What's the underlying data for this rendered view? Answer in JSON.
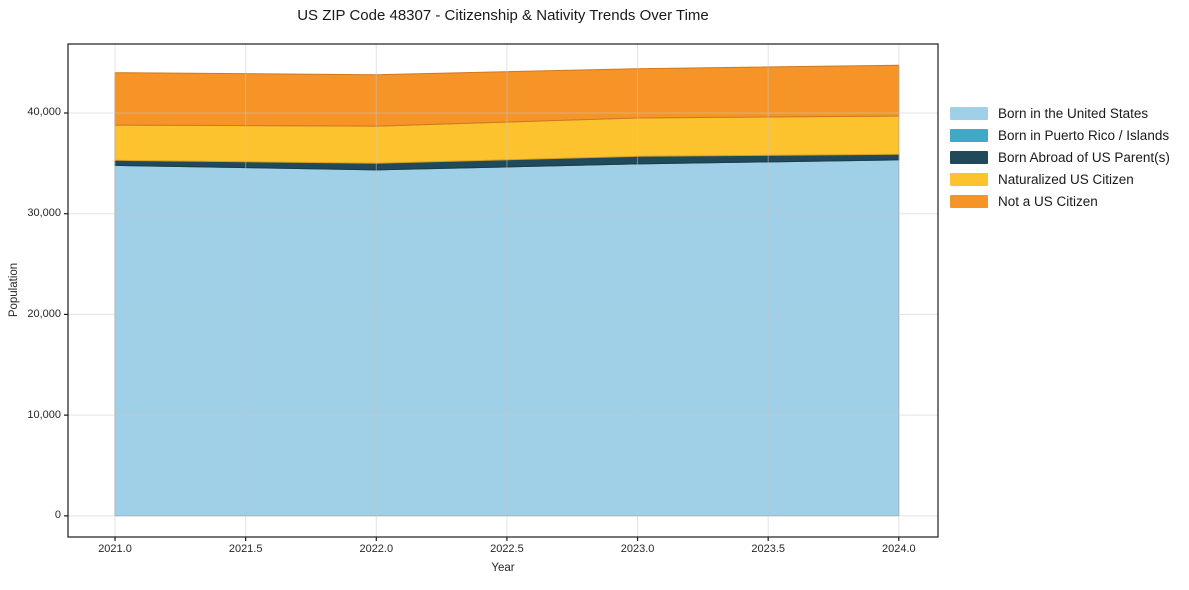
{
  "figure": {
    "background": "#ffffff",
    "spine_color": "#1a1a1a",
    "grid_color": "#c8c8c8",
    "text_color": "#262626"
  },
  "chart_data": {
    "type": "area",
    "stacked": true,
    "title": "US ZIP Code 48307 - Citizenship & Nativity Trends Over Time",
    "xlabel": "Year",
    "ylabel": "Population",
    "x": [
      2021,
      2022,
      2023,
      2024
    ],
    "series": [
      {
        "name": "Born in the United States",
        "color": "#9fd0e7",
        "values": [
          34800,
          34350,
          34950,
          35350
        ]
      },
      {
        "name": "Born in Puerto Rico / Islands",
        "color": "#41a8c6",
        "values": [
          0,
          0,
          0,
          0
        ]
      },
      {
        "name": "Born Abroad of US Parent(s)",
        "color": "#20495a",
        "values": [
          500,
          650,
          750,
          550
        ]
      },
      {
        "name": "Naturalized US Citizen",
        "color": "#fdc32e",
        "values": [
          3500,
          3700,
          3800,
          3800
        ]
      },
      {
        "name": "Not a US Citizen",
        "color": "#f79428",
        "values": [
          5200,
          5100,
          4900,
          5050
        ]
      }
    ],
    "xlim": [
      2020.82,
      2024.15
    ],
    "ylim": [
      -2100,
      46850
    ],
    "xticks": {
      "values": [
        2021.0,
        2021.5,
        2022.0,
        2022.5,
        2023.0,
        2023.5,
        2024.0
      ],
      "labels": [
        "2021.0",
        "2021.5",
        "2022.0",
        "2022.5",
        "2023.0",
        "2023.5",
        "2024.0"
      ]
    },
    "yticks": {
      "values": [
        0,
        10000,
        20000,
        30000,
        40000
      ],
      "labels": [
        "0",
        "10,000",
        "20,000",
        "30,000",
        "40,000"
      ]
    },
    "grid": true,
    "legend_position": "outside-right"
  }
}
